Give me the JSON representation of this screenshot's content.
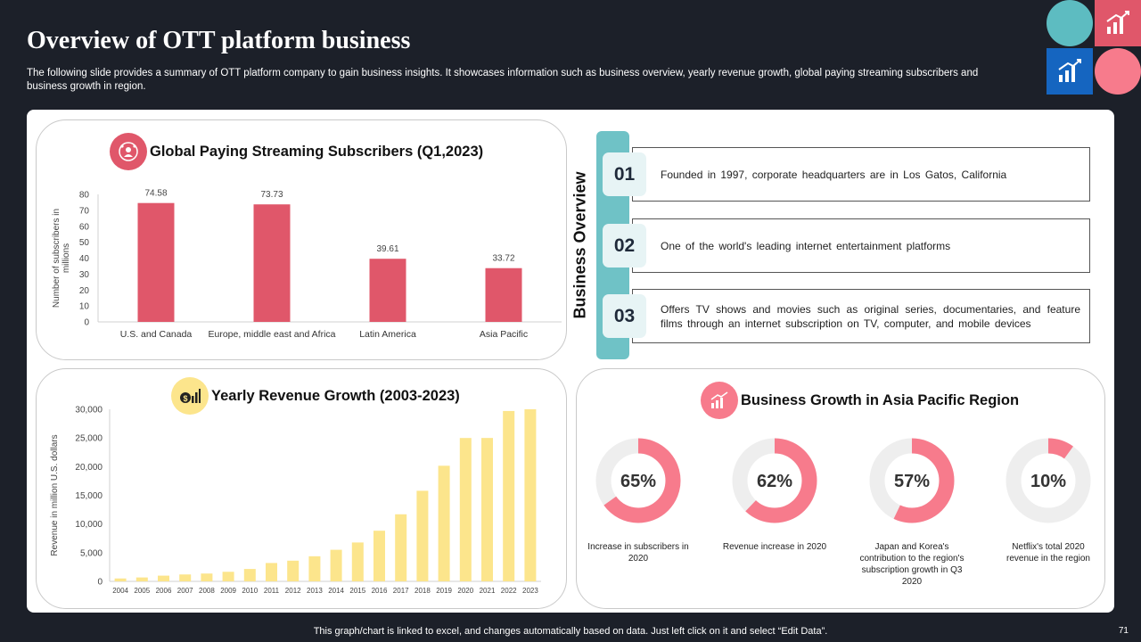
{
  "page": {
    "title": "Overview of OTT  platform business",
    "subtitle": "The following slide provides a summary of OTT platform company to gain business insights. It showcases information such as business overview, yearly revenue growth, global paying streaming subscribers and business growth in region.",
    "footer": "This graph/chart is linked to excel,  and changes automatically based on data. Just left click on it and select “Edit Data”.",
    "page_number": "71"
  },
  "colors": {
    "background": "#1c2029",
    "subscriber_bar": "#e0576a",
    "revenue_bar": "#fce58c",
    "donut_fill": "#f77b8c",
    "donut_track": "#eeeeee",
    "overview_accent": "#6fc2c6"
  },
  "icons": {
    "subscribers_badge": "people-network-icon",
    "revenue_badge": "money-chart-icon",
    "growth_badge": "growth-chart-icon"
  },
  "business_overview": {
    "label": "Business Overview",
    "items": [
      {
        "num": "01",
        "text": "Founded in 1997, corporate headquarters are in Los Gatos, California"
      },
      {
        "num": "02",
        "text": "One of the world's leading internet entertainment platforms"
      },
      {
        "num": "03",
        "text": "Offers TV shows and movies such as original series, documentaries, and feature films through an internet subscription on TV, computer, and mobile devices"
      }
    ]
  },
  "chart_data": [
    {
      "type": "bar",
      "title": "Global Paying Streaming Subscribers (Q1,2023)",
      "ylabel": "Number of subscribers in millions",
      "categories": [
        "U.S. and Canada",
        "Europe, middle east and Africa",
        "Latin America",
        "Asia Pacific"
      ],
      "values": [
        74.58,
        73.73,
        39.61,
        33.72
      ],
      "value_labels": [
        "74.58",
        "73.73",
        "39.61",
        "33.72"
      ],
      "yticks": [
        "0",
        "10",
        "20",
        "30",
        "40",
        "50",
        "60",
        "70",
        "80"
      ],
      "ylim": [
        0,
        80
      ],
      "grid": false
    },
    {
      "type": "bar",
      "title": "Yearly Revenue Growth (2003-2023)",
      "ylabel": "Revenue in million U.S. dollars",
      "categories": [
        "2004",
        "2005",
        "2006",
        "2007",
        "2008",
        "2009",
        "2010",
        "2011",
        "2012",
        "2013",
        "2014",
        "2015",
        "2016",
        "2017",
        "2018",
        "2019",
        "2020",
        "2021",
        "2022",
        "2023"
      ],
      "values": [
        506,
        682,
        997,
        1205,
        1365,
        1670,
        2163,
        3205,
        3609,
        4375,
        5505,
        6780,
        8831,
        11693,
        15794,
        20156,
        24996,
        25000,
        29700,
        31600
      ],
      "yticks": [
        "0",
        "5,000",
        "10,000",
        "15,000",
        "20,000",
        "25,000",
        "30,000"
      ],
      "ylim": [
        0,
        30000
      ],
      "grid": false
    },
    {
      "type": "pie",
      "title": "Business Growth in Asia Pacific Region",
      "series": [
        {
          "label": "65%",
          "value": 65,
          "caption": "Increase in subscribers in 2020"
        },
        {
          "label": "62%",
          "value": 62,
          "caption": "Revenue increase in 2020"
        },
        {
          "label": "57%",
          "value": 57,
          "caption": "Japan and Korea's contribution to the region's subscription growth in Q3 2020"
        },
        {
          "label": "10%",
          "value": 10,
          "caption": "Netflix's total 2020 revenue in the region"
        }
      ]
    }
  ]
}
